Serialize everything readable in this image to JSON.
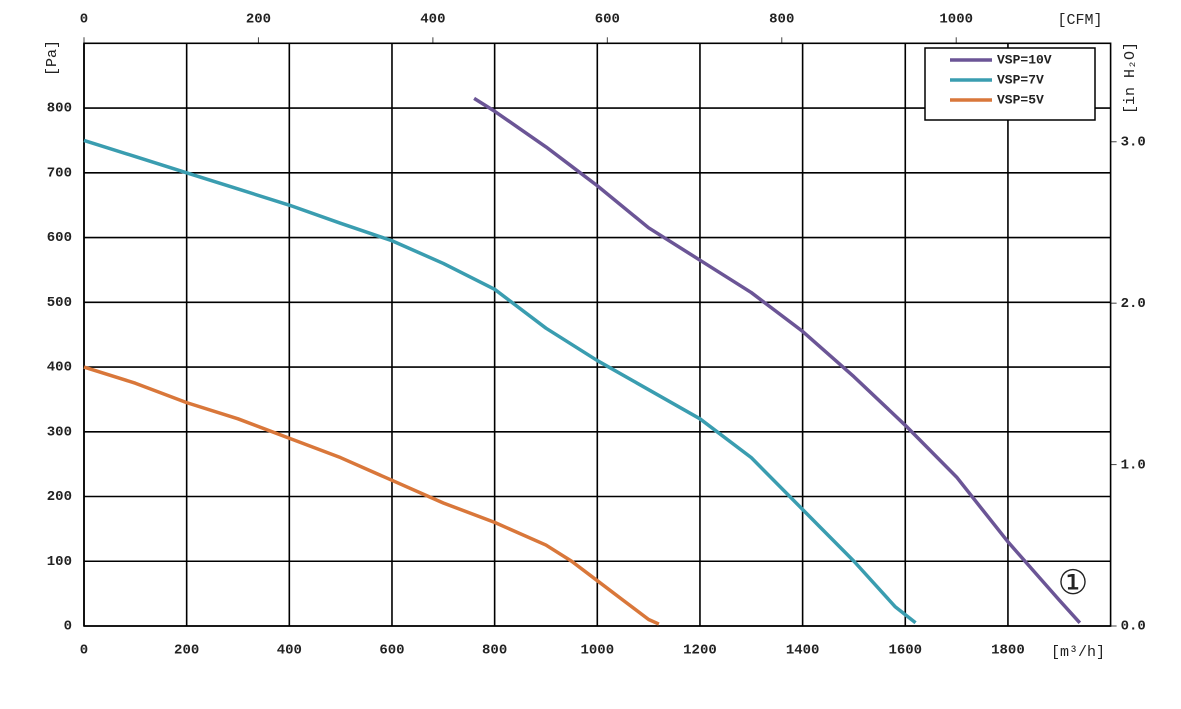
{
  "chart_data": {
    "type": "line",
    "xlabel": "[m³/h]",
    "ylabel": "[Pa]",
    "x2label": "[CFM]",
    "y2label": "[in H₂O]",
    "annotation": "①",
    "xlim": [
      0,
      2000
    ],
    "xticks": [
      0,
      200,
      400,
      600,
      800,
      1000,
      1200,
      1400,
      1600,
      1800
    ],
    "ylim": [
      0,
      900
    ],
    "yticks": [
      0,
      100,
      200,
      300,
      400,
      500,
      600,
      700,
      800
    ],
    "x2lim": [
      0,
      1177
    ],
    "x2ticks": [
      0,
      200,
      400,
      600,
      800,
      1000
    ],
    "y2lim": [
      0,
      3.61
    ],
    "y2ticks": [
      {
        "value": 0,
        "label": "0.0"
      },
      {
        "value": 1,
        "label": "1.0"
      },
      {
        "value": 2,
        "label": "2.0"
      },
      {
        "value": 3,
        "label": "3.0"
      }
    ],
    "grid": true,
    "legend": "upper right",
    "series": [
      {
        "name": "VSP=10V",
        "color": "#6b5596",
        "x": [
          760,
          800,
          900,
          950,
          1000,
          1100,
          1200,
          1300,
          1400,
          1500,
          1600,
          1700,
          1800,
          1900,
          1940
        ],
        "values": [
          815,
          795,
          740,
          710,
          680,
          615,
          565,
          515,
          455,
          385,
          310,
          230,
          130,
          40,
          5
        ]
      },
      {
        "name": "VSP=7V",
        "color": "#3a9db0",
        "x": [
          0,
          100,
          200,
          300,
          400,
          500,
          600,
          700,
          800,
          900,
          1000,
          1100,
          1200,
          1300,
          1400,
          1500,
          1580,
          1620
        ],
        "values": [
          750,
          725,
          700,
          675,
          650,
          622,
          595,
          560,
          520,
          460,
          410,
          365,
          320,
          260,
          180,
          100,
          30,
          5
        ]
      },
      {
        "name": "VSP=5V",
        "color": "#d9773a",
        "x": [
          0,
          100,
          200,
          300,
          400,
          500,
          600,
          700,
          800,
          900,
          950,
          1000,
          1050,
          1100,
          1120
        ],
        "values": [
          400,
          375,
          345,
          320,
          290,
          260,
          225,
          190,
          160,
          125,
          100,
          70,
          40,
          10,
          3
        ]
      }
    ]
  }
}
